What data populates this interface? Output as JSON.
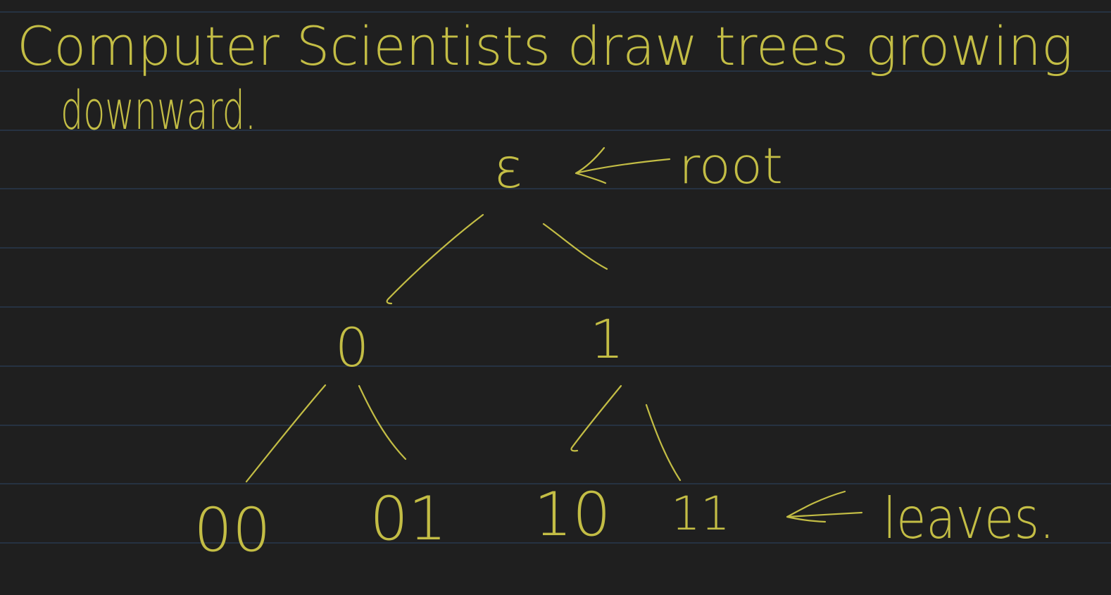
{
  "note": {
    "line1": "Computer Scientists draw trees growing",
    "line2": "downward."
  },
  "tree": {
    "root": {
      "label": "ε",
      "annotation": "root"
    },
    "level1": [
      {
        "label": "0"
      },
      {
        "label": "1"
      }
    ],
    "leaves": [
      {
        "label": "00"
      },
      {
        "label": "01"
      },
      {
        "label": "10"
      },
      {
        "label": "11"
      }
    ],
    "leaves_annotation": "leaves."
  },
  "colors": {
    "ink": "#c3bd45",
    "paper": "#1f1f1f",
    "rule_lines": "#2d4565"
  }
}
